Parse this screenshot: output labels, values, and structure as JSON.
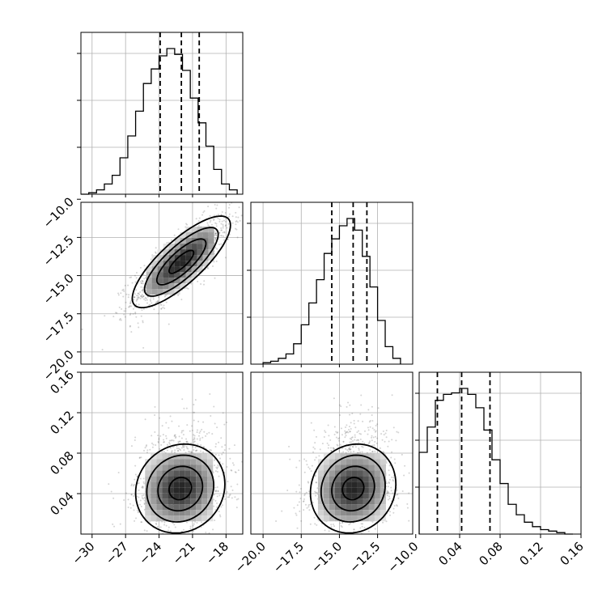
{
  "chart_data": {
    "type": "corner",
    "title": "",
    "params": [
      {
        "xlim": [
          -31,
          -16.5
        ],
        "ticks": [
          -30,
          -27,
          -24,
          -21,
          -18
        ],
        "tick_labels": [
          "−30",
          "−27",
          "−24",
          "−21",
          "−18"
        ],
        "quantiles": [
          -23.9,
          -22.0,
          -20.4
        ],
        "hist": {
          "edges": [
            -31,
            -30.3,
            -29.6,
            -28.9,
            -28.2,
            -27.5,
            -26.8,
            -26.1,
            -25.4,
            -24.7,
            -24.0,
            -23.3,
            -22.6,
            -21.9,
            -21.2,
            -20.5,
            -19.8,
            -19.1,
            -18.4,
            -17.7,
            -17.0
          ],
          "counts": [
            0,
            1,
            3,
            7,
            13,
            25,
            40,
            57,
            76,
            86,
            95,
            100,
            96,
            85,
            66,
            49,
            33,
            17,
            7,
            3
          ]
        }
      },
      {
        "xlim": [
          -20.8,
          -10.2
        ],
        "ticks": [
          -20,
          -17.5,
          -15,
          -12.5,
          -10
        ],
        "tick_labels": [
          "−20.0",
          "−17.5",
          "−15.0",
          "−12.5",
          "−10.0"
        ],
        "row_tick_labels": [
          "−10.0",
          "−12.5",
          "−15.0",
          "−17.5",
          "−20.0"
        ],
        "row_ticks": [
          -10,
          -12.5,
          -15,
          -17.5,
          -20
        ],
        "quantiles": [
          -15.5,
          -14.1,
          -13.2
        ],
        "hist": {
          "edges": [
            -20.0,
            -19.5,
            -19.0,
            -18.5,
            -18.0,
            -17.5,
            -17.0,
            -16.5,
            -16.0,
            -15.5,
            -15.0,
            -14.5,
            -14.0,
            -13.5,
            -13.0,
            -12.5,
            -12.0,
            -11.5,
            -11.0
          ],
          "counts": [
            1,
            2,
            4,
            7,
            14,
            27,
            42,
            58,
            76,
            86,
            95,
            100,
            92,
            74,
            53,
            30,
            12,
            4
          ]
        }
      },
      {
        "xlim": [
          0.0,
          0.16
        ],
        "ticks": [
          0.04,
          0.08,
          0.12,
          0.16
        ],
        "tick_labels": [
          "0.04",
          "0.08",
          "0.12",
          "0.16"
        ],
        "row_tick_labels": [
          "0.16",
          "0.12",
          "0.08",
          "0.04"
        ],
        "row_ticks": [
          0.16,
          0.12,
          0.08,
          0.04
        ],
        "quantiles": [
          0.018,
          0.042,
          0.07
        ],
        "hist": {
          "edges": [
            0.0,
            0.008,
            0.016,
            0.024,
            0.032,
            0.04,
            0.048,
            0.056,
            0.064,
            0.072,
            0.08,
            0.088,
            0.096,
            0.104,
            0.112,
            0.12,
            0.128,
            0.136,
            0.144,
            0.152
          ],
          "counts": [
            55,
            72,
            90,
            94,
            95,
            98,
            94,
            85,
            70,
            50,
            34,
            20,
            13,
            8,
            5,
            3,
            2,
            1,
            0
          ]
        }
      }
    ],
    "pairs": [
      {
        "row": 1,
        "col": 0,
        "center": [
          -22.0,
          -14.1
        ],
        "sd": [
          2.2,
          1.5
        ],
        "rho": 0.8
      },
      {
        "row": 2,
        "col": 0,
        "center": [
          -22.1,
          0.045
        ],
        "sd": [
          2.0,
          0.022
        ],
        "rho": 0.1
      },
      {
        "row": 2,
        "col": 1,
        "center": [
          -14.1,
          0.045
        ],
        "sd": [
          1.4,
          0.022
        ],
        "rho": 0.1
      }
    ],
    "grid": true,
    "legend": "none"
  }
}
